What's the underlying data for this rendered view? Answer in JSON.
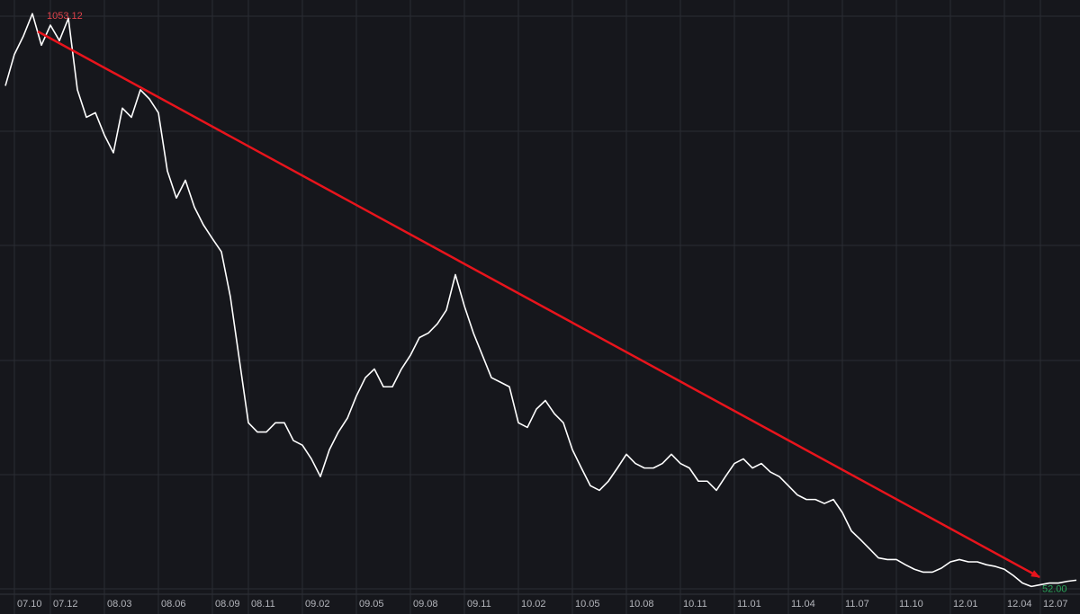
{
  "chart_data": {
    "type": "line",
    "categories": [
      null,
      "07.10",
      null,
      null,
      null,
      "07.12",
      null,
      null,
      null,
      null,
      null,
      "08.03",
      null,
      null,
      null,
      null,
      null,
      "08.06",
      null,
      null,
      null,
      null,
      null,
      "08.09",
      null,
      null,
      null,
      "08.11",
      null,
      null,
      null,
      null,
      null,
      "09.02",
      null,
      null,
      null,
      null,
      null,
      "09.05",
      null,
      null,
      null,
      null,
      null,
      "09.08",
      null,
      null,
      null,
      null,
      null,
      "09.11",
      null,
      null,
      null,
      null,
      null,
      "10.02",
      null,
      null,
      null,
      null,
      null,
      "10.05",
      null,
      null,
      null,
      null,
      null,
      "10.08",
      null,
      null,
      null,
      null,
      null,
      "10.11",
      null,
      null,
      null,
      null,
      null,
      "11.01",
      null,
      null,
      null,
      null,
      null,
      "11.04",
      null,
      null,
      null,
      null,
      null,
      "11.07",
      null,
      null,
      null,
      null,
      null,
      "11.10",
      null,
      null,
      null,
      null,
      null,
      "12.01",
      null,
      null,
      null,
      null,
      null,
      "12.04",
      null,
      null,
      null,
      "12.07",
      null,
      null,
      null,
      null
    ],
    "values": [
      927,
      982,
      1014,
      1053.12,
      998,
      1033,
      1006,
      1045,
      920,
      872,
      880,
      841,
      810,
      888,
      872,
      920,
      904,
      880,
      778,
      731,
      762,
      715,
      684,
      660,
      637,
      558,
      448,
      338,
      322,
      322,
      338,
      338,
      307,
      299,
      275,
      244,
      291,
      322,
      346,
      385,
      417,
      432,
      401,
      401,
      432,
      456,
      487,
      495,
      511,
      535,
      597,
      542,
      495,
      456,
      417,
      409,
      401,
      338,
      330,
      362,
      377,
      354,
      338,
      291,
      259,
      228,
      220,
      236,
      259,
      283,
      267,
      259,
      259,
      267,
      283,
      267,
      259,
      236,
      236,
      220,
      244,
      267,
      275,
      259,
      267,
      252,
      244,
      228,
      212,
      204,
      204,
      197,
      204,
      181,
      149,
      134,
      118,
      102,
      99,
      99,
      90,
      82,
      77,
      77,
      84,
      95,
      99,
      95,
      95,
      90,
      87,
      82,
      71,
      58,
      52,
      55,
      58,
      58,
      61,
      63
    ],
    "value_labels": [
      null,
      null,
      null,
      "1053.12",
      null,
      null,
      null,
      null,
      null,
      null,
      null,
      null,
      null,
      null,
      null,
      null,
      null,
      null,
      null,
      null,
      null,
      null,
      null,
      null,
      null,
      null,
      null,
      null,
      null,
      null,
      null,
      null,
      null,
      null,
      null,
      null,
      null,
      null,
      null,
      null,
      null,
      null,
      null,
      null,
      null,
      null,
      null,
      null,
      null,
      null,
      null,
      null,
      null,
      null,
      null,
      null,
      null,
      null,
      null,
      null,
      null,
      null,
      null,
      null,
      null,
      null,
      null,
      null,
      null,
      null,
      null,
      null,
      null,
      null,
      null,
      null,
      null,
      null,
      null,
      null,
      null,
      null,
      null,
      null,
      null,
      null,
      null,
      null,
      null,
      null,
      null,
      null,
      null,
      null,
      null,
      null,
      null,
      null,
      null,
      null,
      null,
      null,
      null,
      null,
      null,
      null,
      null,
      null,
      null,
      null,
      null,
      null,
      null,
      null,
      "52.00",
      null,
      null,
      null,
      null,
      null
    ],
    "color": "#ffffff",
    "max_label_color": "#e0424a",
    "min_label_color": "#2aa55a",
    "ylim": [
      40,
      1077
    ],
    "grid": true
  }
}
